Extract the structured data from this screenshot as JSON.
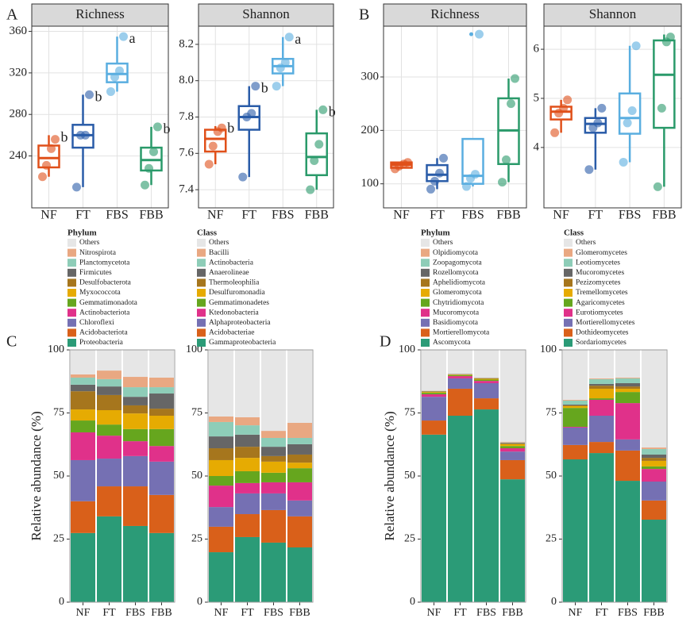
{
  "panels": [
    "A",
    "B",
    "C",
    "D"
  ],
  "chart_data": [
    {
      "type": "box",
      "title": "Richness",
      "categories": [
        "NF",
        "FT",
        "FBS",
        "FBB"
      ],
      "ylim": [
        190,
        365
      ],
      "yticks": [
        240,
        280,
        320,
        360
      ],
      "boxes": [
        {
          "color": "#e0501a",
          "min": 220,
          "q1": 229,
          "median": 238,
          "q3": 250,
          "max": 260,
          "points": [
            220,
            231,
            247,
            256
          ],
          "label": "b"
        },
        {
          "color": "#2a5ca8",
          "min": 210,
          "q1": 248,
          "median": 260,
          "q3": 270,
          "max": 299,
          "points": [
            210,
            260,
            260,
            299
          ],
          "label": "b"
        },
        {
          "color": "#5aaee0",
          "min": 302,
          "q1": 311,
          "median": 319,
          "q3": 329,
          "max": 355,
          "points": [
            302,
            316,
            322,
            355
          ],
          "label": "a"
        },
        {
          "color": "#2a9a6a",
          "min": 212,
          "q1": 226,
          "median": 236,
          "q3": 248,
          "max": 268,
          "points": [
            212,
            228,
            244,
            268
          ],
          "label": "b"
        }
      ]
    },
    {
      "type": "box",
      "title": "Shannon",
      "categories": [
        "NF",
        "FT",
        "FBS",
        "FBB"
      ],
      "ylim": [
        7.3,
        8.3
      ],
      "yticks": [
        7.4,
        7.6,
        7.8,
        {
          "value": 8,
          "label": "8.0"
        },
        8.2
      ],
      "boxes": [
        {
          "color": "#e0501a",
          "min": 7.54,
          "q1": 7.61,
          "median": 7.68,
          "q3": 7.73,
          "max": 7.75,
          "points": [
            7.54,
            7.64,
            7.72,
            7.74
          ],
          "label": "b"
        },
        {
          "color": "#2a5ca8",
          "min": 7.47,
          "q1": 7.73,
          "median": 7.8,
          "q3": 7.86,
          "max": 7.97,
          "points": [
            7.47,
            7.8,
            7.82,
            7.97
          ],
          "label": "b"
        },
        {
          "color": "#5aaee0",
          "min": 7.97,
          "q1": 8.04,
          "median": 8.08,
          "q3": 8.12,
          "max": 8.24,
          "points": [
            7.97,
            8.07,
            8.1,
            8.24
          ],
          "label": "a"
        },
        {
          "color": "#2a9a6a",
          "min": 7.4,
          "q1": 7.48,
          "median": 7.58,
          "q3": 7.71,
          "max": 7.84,
          "points": [
            7.4,
            7.56,
            7.65,
            7.84
          ],
          "label": "b"
        }
      ]
    },
    {
      "type": "box",
      "title": "Richness",
      "categories": [
        "NF",
        "FT",
        "FBS",
        "FBB"
      ],
      "ylim": [
        55,
        395
      ],
      "yticks": [
        100,
        200,
        300
      ],
      "boxes": [
        {
          "color": "#e0501a",
          "min": 128,
          "q1": 130,
          "median": 136,
          "q3": 140,
          "max": 142,
          "points": [
            128,
            133,
            137,
            140
          ]
        },
        {
          "color": "#2a5ca8",
          "min": 90,
          "q1": 105,
          "median": 117,
          "q3": 135,
          "max": 148,
          "points": [
            90,
            105,
            120,
            148
          ]
        },
        {
          "color": "#5aaee0",
          "min": 95,
          "q1": 100,
          "median": 115,
          "q3": 184,
          "max": 184,
          "points": [
            95,
            110,
            118,
            380
          ],
          "outliers": [
            380
          ]
        },
        {
          "color": "#2a9a6a",
          "min": 103,
          "q1": 137,
          "median": 200,
          "q3": 260,
          "max": 297,
          "points": [
            103,
            145,
            250,
            297
          ]
        }
      ]
    },
    {
      "type": "box",
      "title": "Shannon",
      "categories": [
        "NF",
        "FT",
        "FBS",
        "FBB"
      ],
      "ylim": [
        2.77,
        6.47
      ],
      "yticks": [
        4,
        5,
        6
      ],
      "boxes": [
        {
          "color": "#e0501a",
          "min": 4.3,
          "q1": 4.57,
          "median": 4.73,
          "q3": 4.83,
          "max": 4.97,
          "points": [
            4.3,
            4.7,
            4.8,
            4.97
          ]
        },
        {
          "color": "#2a5ca8",
          "min": 3.55,
          "q1": 4.3,
          "median": 4.48,
          "q3": 4.6,
          "max": 4.8,
          "points": [
            3.55,
            4.4,
            4.5,
            4.8
          ]
        },
        {
          "color": "#5aaee0",
          "min": 3.7,
          "q1": 4.28,
          "median": 4.6,
          "q3": 5.1,
          "max": 6.07,
          "points": [
            3.7,
            4.5,
            4.75,
            6.07
          ]
        },
        {
          "color": "#2a9a6a",
          "min": 3.2,
          "q1": 4.4,
          "median": 5.48,
          "q3": 6.18,
          "max": 6.3,
          "points": [
            3.2,
            4.8,
            6.15,
            6.25
          ]
        }
      ]
    },
    {
      "type": "bar",
      "stacked": true,
      "legend_title": "Phylum",
      "ylabel": "Relative abundance (%)",
      "categories": [
        "NF",
        "FT",
        "FBS",
        "FBB"
      ],
      "ylim": [
        0,
        100
      ],
      "yticks": [
        0,
        25,
        50,
        75,
        100
      ],
      "series": [
        {
          "name": "Proteobacteria",
          "color": "#2b9b77",
          "values": [
            27.4,
            34.0,
            30.2,
            27.4
          ]
        },
        {
          "name": "Acidobacteriota",
          "color": "#d9601a",
          "values": [
            12.6,
            11.9,
            15.7,
            15.1
          ]
        },
        {
          "name": "Chloroflexi",
          "color": "#7570b3",
          "values": [
            16.3,
            11.0,
            12.0,
            13.2
          ]
        },
        {
          "name": "Actinobacteriota",
          "color": "#e0318a",
          "values": [
            11.0,
            9.1,
            5.9,
            6.2
          ]
        },
        {
          "name": "Gemmatimonadota",
          "color": "#66a61e",
          "values": [
            4.7,
            4.4,
            4.8,
            6.7
          ]
        },
        {
          "name": "Myxococcota",
          "color": "#e6ab02",
          "values": [
            4.4,
            5.7,
            6.2,
            5.3
          ]
        },
        {
          "name": "Desulfobacterota",
          "color": "#a6761d",
          "values": [
            7.2,
            6.0,
            3.2,
            2.8
          ]
        },
        {
          "name": "Firmicutes",
          "color": "#666666",
          "values": [
            2.6,
            3.4,
            3.4,
            6.0
          ]
        },
        {
          "name": "Planctomycetota",
          "color": "#8ecdb8",
          "values": [
            2.8,
            2.9,
            3.8,
            2.5
          ]
        },
        {
          "name": "Nitrospirota",
          "color": "#e9a882",
          "values": [
            1.3,
            3.4,
            4.1,
            3.8
          ]
        },
        {
          "name": "Others",
          "color": "#e6e6e6",
          "values": [
            9.7,
            8.2,
            10.7,
            11.0
          ]
        }
      ]
    },
    {
      "type": "bar",
      "stacked": true,
      "legend_title": "Class",
      "categories": [
        "NF",
        "FT",
        "FBS",
        "FBB"
      ],
      "ylim": [
        0,
        100
      ],
      "yticks": [
        0,
        25,
        50,
        75,
        100
      ],
      "series": [
        {
          "name": "Gammaproteobacteria",
          "color": "#2b9b77",
          "values": [
            19.8,
            25.8,
            23.6,
            21.7
          ]
        },
        {
          "name": "Acidobacteriae",
          "color": "#d9601a",
          "values": [
            10.1,
            9.1,
            12.9,
            12.3
          ]
        },
        {
          "name": "Alphaproteobacteria",
          "color": "#7570b3",
          "values": [
            7.8,
            8.2,
            6.6,
            6.3
          ]
        },
        {
          "name": "Ktedonobacteria",
          "color": "#e0318a",
          "values": [
            8.5,
            4.1,
            4.4,
            7.2
          ]
        },
        {
          "name": "Gemmatimonadetes",
          "color": "#66a61e",
          "values": [
            3.8,
            4.7,
            3.8,
            5.6
          ]
        },
        {
          "name": "Desulfuromonadia",
          "color": "#e6ab02",
          "values": [
            6.3,
            5.3,
            4.4,
            2.2
          ]
        },
        {
          "name": "Thermoleophilia",
          "color": "#a6761d",
          "values": [
            4.7,
            4.4,
            2.2,
            3.2
          ]
        },
        {
          "name": "Anaerolineae",
          "color": "#666666",
          "values": [
            4.7,
            4.8,
            3.7,
            4.1
          ]
        },
        {
          "name": "Actinobacteria",
          "color": "#8ecdb8",
          "values": [
            5.7,
            3.7,
            3.5,
            2.5
          ]
        },
        {
          "name": "Bacilli",
          "color": "#e9a882",
          "values": [
            2.2,
            3.2,
            2.8,
            6.0
          ]
        },
        {
          "name": "Others",
          "color": "#e6e6e6",
          "values": [
            26.4,
            26.7,
            32.1,
            28.9
          ]
        }
      ]
    },
    {
      "type": "bar",
      "stacked": true,
      "legend_title": "Phylum",
      "ylabel": "Relative abundance (%)",
      "categories": [
        "NF",
        "FT",
        "FBS",
        "FBB"
      ],
      "ylim": [
        0,
        100
      ],
      "yticks": [
        0,
        25,
        50,
        75,
        100
      ],
      "series": [
        {
          "name": "Ascomycota",
          "color": "#2b9b77",
          "values": [
            66.4,
            73.9,
            76.4,
            48.7
          ]
        },
        {
          "name": "Mortierellomycota",
          "color": "#d9601a",
          "values": [
            5.6,
            10.7,
            4.4,
            7.6
          ]
        },
        {
          "name": "Basidiomycota",
          "color": "#7570b3",
          "values": [
            9.4,
            4.1,
            6.0,
            3.4
          ]
        },
        {
          "name": "Mucoromycota",
          "color": "#e0318a",
          "values": [
            1.0,
            0.9,
            0.9,
            1.3
          ]
        },
        {
          "name": "Chytridiomycota",
          "color": "#66a61e",
          "values": [
            0.6,
            0.4,
            0.5,
            0.9
          ]
        },
        {
          "name": "Glomeromycota",
          "color": "#e6ab02",
          "values": [
            0.3,
            0.2,
            0.3,
            0.7
          ]
        },
        {
          "name": "Aphelidiomycota",
          "color": "#a6761d",
          "values": [
            0.2,
            0.1,
            0.2,
            0.3
          ]
        },
        {
          "name": "Rozellomycota",
          "color": "#666666",
          "values": [
            0.1,
            0.1,
            0.1,
            0.2
          ]
        },
        {
          "name": "Zoopagomycota",
          "color": "#8ecdb8",
          "values": [
            0.1,
            0.1,
            0.1,
            0.2
          ]
        },
        {
          "name": "Olpidiomycota",
          "color": "#e9a882",
          "values": [
            0.1,
            0.1,
            0.1,
            0.3
          ]
        },
        {
          "name": "Others",
          "color": "#e6e6e6",
          "values": [
            16.2,
            9.3,
            11.0,
            36.4
          ]
        }
      ]
    },
    {
      "type": "bar",
      "stacked": true,
      "legend_title": "Class",
      "categories": [
        "NF",
        "FT",
        "FBS",
        "FBB"
      ],
      "ylim": [
        0,
        100
      ],
      "yticks": [
        0,
        25,
        50,
        75,
        100
      ],
      "series": [
        {
          "name": "Sordariomycetes",
          "color": "#2b9b77",
          "values": [
            56.6,
            59.1,
            48.1,
            32.7
          ]
        },
        {
          "name": "Dothideomycetes",
          "color": "#d9601a",
          "values": [
            5.7,
            4.4,
            12.0,
            7.6
          ]
        },
        {
          "name": "Mortierellomycetes",
          "color": "#7570b3",
          "values": [
            6.9,
            10.4,
            4.4,
            7.5
          ]
        },
        {
          "name": "Eurotiomycetes",
          "color": "#e0318a",
          "values": [
            0.3,
            6.3,
            14.4,
            5.0
          ]
        },
        {
          "name": "Agaricomycetes",
          "color": "#66a61e",
          "values": [
            7.5,
            0.6,
            4.4,
            1.0
          ]
        },
        {
          "name": "Tremellomycetes",
          "color": "#e6ab02",
          "values": [
            0.7,
            3.8,
            1.3,
            2.2
          ]
        },
        {
          "name": "Pezizomycetes",
          "color": "#a6761d",
          "values": [
            0.3,
            1.2,
            0.9,
            1.2
          ]
        },
        {
          "name": "Mucoromycetes",
          "color": "#666666",
          "values": [
            0.3,
            0.7,
            1.3,
            1.3
          ]
        },
        {
          "name": "Leotiomycetes",
          "color": "#8ecdb8",
          "values": [
            1.6,
            1.9,
            1.9,
            2.2
          ]
        },
        {
          "name": "Glomeromycetes",
          "color": "#e9a882",
          "values": [
            0.3,
            0.3,
            0.3,
            0.6
          ]
        },
        {
          "name": "Others",
          "color": "#e6e6e6",
          "values": [
            19.8,
            11.3,
            11.0,
            38.7
          ]
        }
      ]
    }
  ]
}
